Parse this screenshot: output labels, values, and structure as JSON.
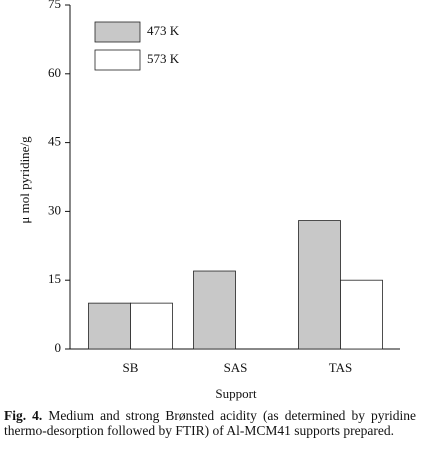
{
  "chart_data": {
    "type": "bar",
    "x_label": "Support",
    "y_label": "μ mol pyridine/g",
    "categories": [
      "SB",
      "SAS",
      "TAS"
    ],
    "series": [
      {
        "name": "473 K",
        "color": "#c8c8c8",
        "values": [
          10,
          17,
          28
        ]
      },
      {
        "name": "573 K",
        "color": "#ffffff",
        "values": [
          10,
          0,
          15
        ]
      }
    ],
    "ylim": [
      0,
      75
    ],
    "yticks": [
      0,
      15,
      30,
      45,
      60,
      75
    ],
    "legend": "top-left"
  },
  "caption": {
    "label": "Fig. 4.",
    "text": "Medium and strong Brønsted acidity (as determined by pyridine thermo-desorption followed by FTIR) of Al-MCM41 supports prepared."
  }
}
